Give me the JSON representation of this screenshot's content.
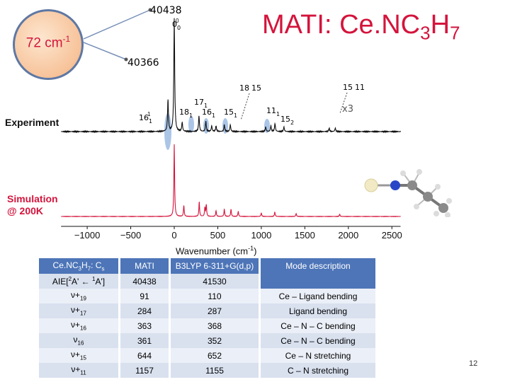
{
  "title": {
    "prefix": "MATI: Ce.NC",
    "sub1": "3",
    "mid": "H",
    "sub2": "7"
  },
  "circle": {
    "label": "72 cm",
    "sup": "-1"
  },
  "callouts": {
    "top": "40438",
    "bottom": "40366"
  },
  "peak_labels": {
    "p0": "0",
    "p0sub": "0",
    "p0sup": "0",
    "l16": "16",
    "l16s": "1",
    "l16b": "1",
    "l17": "17",
    "l17s": "1",
    "l18": "18",
    "l18s": "1",
    "l16b2": "16",
    "l16b2s": "1",
    "l15": "15",
    "l15s": "1",
    "l1815": "18",
    "l1815b": "15",
    "l11": "11",
    "l11s": "1",
    "l15c": "15",
    "l15cs": "2",
    "l1511": "15",
    "l1511b": "11",
    "x3": "x3"
  },
  "labels": {
    "experiment": "Experiment",
    "simulation_line1": "Simulation",
    "simulation_line2": "@ 200K"
  },
  "chart_data": {
    "type": "line",
    "xlabel": "Wavenumber (cm",
    "xlabel_sup": "-1",
    "xlabel_end": ")",
    "xlim": [
      -1300,
      2600
    ],
    "xticks": [
      -1000,
      -500,
      0,
      500,
      1000,
      1500,
      2000,
      2500
    ],
    "series": [
      {
        "name": "Experiment",
        "peaks": [
          {
            "x": -72,
            "y": 0.28
          },
          {
            "x": 0,
            "y": 1.0
          },
          {
            "x": 91,
            "y": 0.08
          },
          {
            "x": 284,
            "y": 0.14
          },
          {
            "x": 363,
            "y": 0.09
          },
          {
            "x": 430,
            "y": 0.05
          },
          {
            "x": 480,
            "y": 0.05
          },
          {
            "x": 575,
            "y": 0.06
          },
          {
            "x": 644,
            "y": 0.06
          },
          {
            "x": 1050,
            "y": 0.04
          },
          {
            "x": 1110,
            "y": 0.05
          },
          {
            "x": 1157,
            "y": 0.07
          },
          {
            "x": 1260,
            "y": 0.04
          },
          {
            "x": 1780,
            "y": 0.03
          },
          {
            "x": 1850,
            "y": 0.03
          }
        ]
      },
      {
        "name": "Simulation",
        "peaks": [
          {
            "x": 0,
            "y": 1.0
          },
          {
            "x": 110,
            "y": 0.15
          },
          {
            "x": 287,
            "y": 0.2
          },
          {
            "x": 352,
            "y": 0.12
          },
          {
            "x": 368,
            "y": 0.16
          },
          {
            "x": 480,
            "y": 0.08
          },
          {
            "x": 575,
            "y": 0.1
          },
          {
            "x": 652,
            "y": 0.1
          },
          {
            "x": 735,
            "y": 0.07
          },
          {
            "x": 1000,
            "y": 0.05
          },
          {
            "x": 1155,
            "y": 0.06
          },
          {
            "x": 1400,
            "y": 0.04
          },
          {
            "x": 1900,
            "y": 0.03
          }
        ]
      }
    ]
  },
  "table": {
    "header": {
      "c0a": "Ce.NC",
      "c0s1": "3",
      "c0b": "H",
      "c0s2": "7",
      "c0c": ": C",
      "c0s3": "s",
      "c1": "MATI",
      "c2": "B3LYP 6-311+G(d,p)",
      "c3": "Mode description"
    },
    "aie": {
      "label_a": "AIE[",
      "sup1": "2",
      "label_b": "A' ← ",
      "sup2": "1",
      "label_c": "A']",
      "mati": "40438",
      "calc": "41530"
    },
    "rows": [
      {
        "mode": "ν+",
        "sub": "19",
        "mati": "91",
        "calc": "110",
        "desc": "Ce – Ligand bending"
      },
      {
        "mode": "ν+",
        "sub": "17",
        "mati": "284",
        "calc": "287",
        "desc": "Ligand bending"
      },
      {
        "mode": "ν+",
        "sub": "16",
        "mati": "363",
        "calc": "368",
        "desc": "Ce – N – C bending"
      },
      {
        "mode": "ν",
        "sub": "16",
        "mati": "361",
        "calc": "352",
        "desc": "Ce – N – C bending"
      },
      {
        "mode": "ν+",
        "sub": "15",
        "mati": "644",
        "calc": "652",
        "desc": "Ce – N stretching"
      },
      {
        "mode": "ν+",
        "sub": "11",
        "mati": "1157",
        "calc": "1155",
        "desc": "C – N stretching"
      }
    ]
  },
  "page_number": "12",
  "colors": {
    "title": "#d4143c",
    "experiment": "#111111",
    "simulation": "#d4143c",
    "table_header": "#4d75b8"
  }
}
